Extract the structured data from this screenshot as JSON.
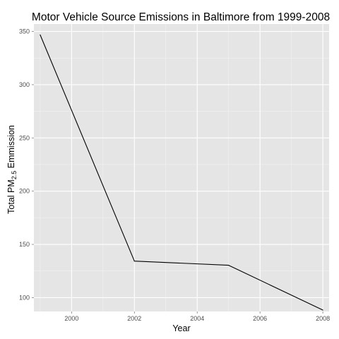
{
  "colors": {
    "panel_background": "#e5e5e5",
    "grid_major": "#ffffff",
    "grid_minor": "#f2f2f2",
    "line": "#000000",
    "tick_text": "#4d4d4d"
  },
  "chart_data": {
    "type": "line",
    "title": "Motor Vehicle Source Emissions in Baltimore from 1999-2008",
    "xlabel": "Year",
    "ylabel": {
      "prefix": "Total  PM",
      "subscript": "2.5",
      "suffix": "  Emmission"
    },
    "x": [
      1999,
      2002,
      2005,
      2008
    ],
    "series": [
      {
        "values": [
          346.8,
          134.3,
          130.4,
          88.3
        ]
      }
    ],
    "xlim": [
      1998.8,
      2008.2
    ],
    "ylim": [
      87,
      357
    ],
    "x_ticks": [
      2000,
      2002,
      2004,
      2006,
      2008
    ],
    "x_tick_labels": [
      "2000",
      "2002",
      "2004",
      "2006",
      "2008"
    ],
    "y_ticks": [
      100,
      150,
      200,
      250,
      300,
      350
    ],
    "y_tick_labels": [
      "100",
      "150",
      "200",
      "250",
      "300",
      "350"
    ],
    "grid": true,
    "legend": "none"
  }
}
